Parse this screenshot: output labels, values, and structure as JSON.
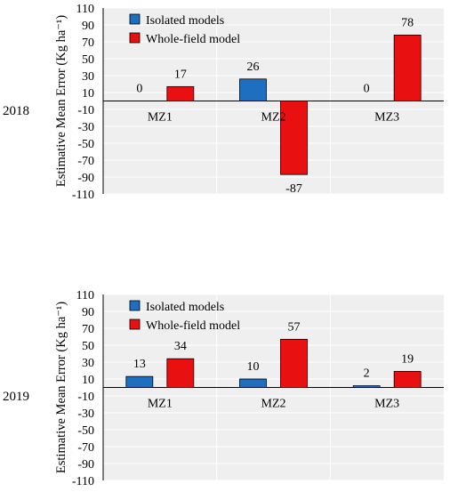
{
  "chart_data": [
    {
      "type": "bar",
      "panel_label": "2018",
      "ylabel": "Estimative Mean Error (Kg ha⁻¹)",
      "categories": [
        "MZ1",
        "MZ2",
        "MZ3"
      ],
      "series": [
        {
          "name": "Isolated models",
          "values": [
            0,
            26,
            0
          ],
          "labels": [
            "0",
            "26",
            "0"
          ],
          "color": "#1f6fc0"
        },
        {
          "name": "Whole-field model",
          "values": [
            17,
            -87,
            78
          ],
          "labels": [
            "17",
            "-87",
            "78"
          ],
          "color": "#e81010"
        }
      ],
      "ylim": [
        -110,
        110
      ],
      "yticks": [
        110,
        90,
        70,
        50,
        30,
        10,
        -10,
        -30,
        -50,
        -70,
        -90,
        -110
      ],
      "grid": true,
      "legend": "top-left"
    },
    {
      "type": "bar",
      "panel_label": "2019",
      "ylabel": "Estimative Mean Error (Kg ha⁻¹)",
      "categories": [
        "MZ1",
        "MZ2",
        "MZ3"
      ],
      "series": [
        {
          "name": "Isolated models",
          "values": [
            13,
            10,
            2
          ],
          "labels": [
            "13",
            "10",
            "2"
          ],
          "color": "#1f6fc0"
        },
        {
          "name": "Whole-field model",
          "values": [
            34,
            57,
            19
          ],
          "labels": [
            "34",
            "57",
            "19"
          ],
          "color": "#e81010"
        }
      ],
      "ylim": [
        -110,
        110
      ],
      "yticks": [
        110,
        90,
        70,
        50,
        30,
        10,
        -10,
        -30,
        -50,
        -70,
        -90,
        -110
      ],
      "grid": true,
      "legend": "top-left"
    }
  ]
}
